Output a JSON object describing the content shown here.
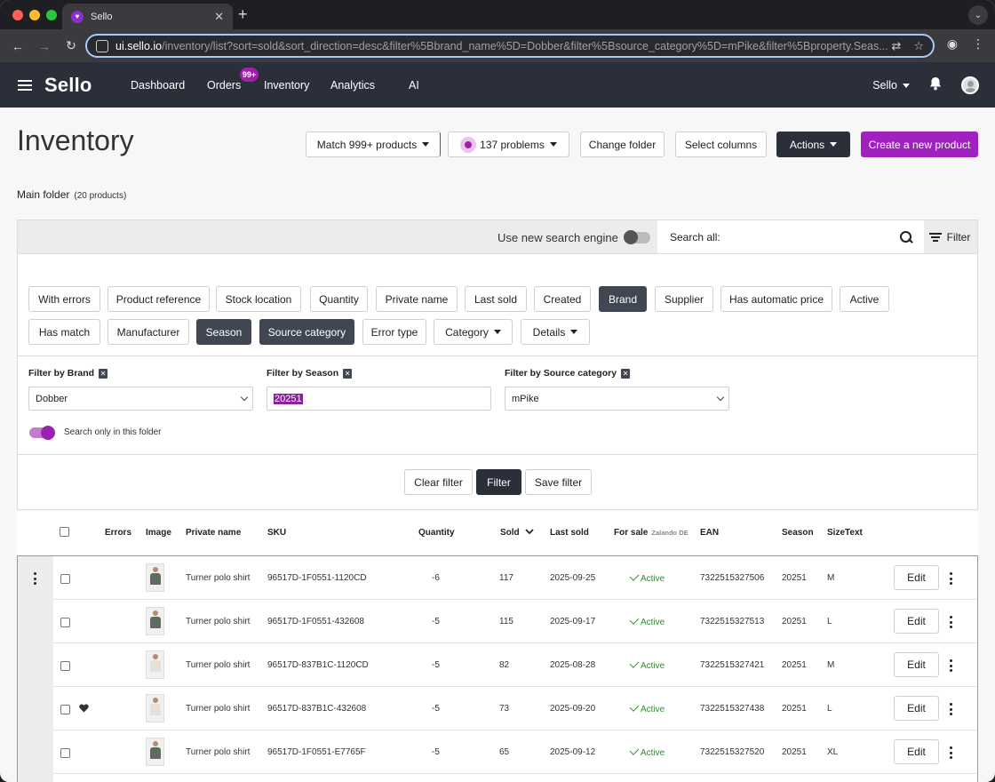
{
  "browser": {
    "tab_title": "Sello",
    "url_host": "ui.sello.io",
    "url_path": "/inventory/list?sort=sold&sort_direction=desc&filter%5Bbrand_name%5D=Dobber&filter%5Bsource_category%5D=mPike&filter%5Bproperty.Seas..."
  },
  "app": {
    "logo": "Sello",
    "nav": [
      "Dashboard",
      "Orders",
      "Inventory",
      "Analytics",
      "AI"
    ],
    "orders_badge": "99+",
    "account": "Sello"
  },
  "page": {
    "title": "Inventory",
    "match_label": "Match 999+ products",
    "problems_label": "137 problems",
    "change_folder": "Change folder",
    "select_columns": "Select columns",
    "actions": "Actions",
    "create": "Create a new product",
    "folder_name": "Main folder",
    "folder_count": "(20 products)"
  },
  "search": {
    "engine_label": "Use new search engine",
    "search_all": "Search all:",
    "filter_label": "Filter"
  },
  "chips": [
    {
      "label": "With errors",
      "active": false
    },
    {
      "label": "Product reference",
      "active": false
    },
    {
      "label": "Stock location",
      "active": false
    },
    {
      "label": "Quantity",
      "active": false
    },
    {
      "label": "Private name",
      "active": false
    },
    {
      "label": "Last sold",
      "active": false
    },
    {
      "label": "Created",
      "active": false
    },
    {
      "label": "Brand",
      "active": true
    },
    {
      "label": "Supplier",
      "active": false
    },
    {
      "label": "Has automatic price",
      "active": false
    },
    {
      "label": "Active",
      "active": false
    },
    {
      "label": "Has match",
      "active": false
    },
    {
      "label": "Manufacturer",
      "active": false
    },
    {
      "label": "Season",
      "active": true
    },
    {
      "label": "Source category",
      "active": true
    },
    {
      "label": "Error type",
      "active": false
    },
    {
      "label": "Category",
      "active": false
    },
    {
      "label": "Details",
      "active": false
    }
  ],
  "filters": {
    "brand_label": "Filter by Brand",
    "brand_value": "Dobber",
    "season_label": "Filter by Season",
    "season_value": "20251",
    "source_label": "Filter by Source category",
    "source_value": "mPike",
    "folder_only_label": "Search only in this folder",
    "clear": "Clear filter",
    "apply": "Filter",
    "save": "Save filter"
  },
  "table": {
    "headers": {
      "errors": "Errors",
      "image": "Image",
      "private_name": "Private name",
      "sku": "SKU",
      "quantity": "Quantity",
      "sold": "Sold",
      "last_sold": "Last sold",
      "for_sale": "For sale",
      "for_sale_sub": "Zalando DE",
      "ean": "EAN",
      "season": "Season",
      "sizetext": "SizeText"
    },
    "edit_label": "Edit",
    "rows": [
      {
        "name": "Turner polo shirt",
        "sku": "96517D-1F0551-1120CD",
        "quantity": "-6",
        "sold": "117",
        "last_sold": "2025-09-25",
        "status": "Active",
        "ean": "7322515327506",
        "season": "20251",
        "size": "M",
        "color": "#5d6b63",
        "heart": false
      },
      {
        "name": "Turner polo shirt",
        "sku": "96517D-1F0551-432608",
        "quantity": "-5",
        "sold": "115",
        "last_sold": "2025-09-17",
        "status": "Active",
        "ean": "7322515327513",
        "season": "20251",
        "size": "L",
        "color": "#5d6b63",
        "heart": false
      },
      {
        "name": "Turner polo shirt",
        "sku": "96517D-837B1C-1120CD",
        "quantity": "-5",
        "sold": "82",
        "last_sold": "2025-08-28",
        "status": "Active",
        "ean": "7322515327421",
        "season": "20251",
        "size": "M",
        "color": "#e6e1d6",
        "heart": false
      },
      {
        "name": "Turner polo shirt",
        "sku": "96517D-837B1C-432608",
        "quantity": "-5",
        "sold": "73",
        "last_sold": "2025-09-20",
        "status": "Active",
        "ean": "7322515327438",
        "season": "20251",
        "size": "L",
        "color": "#e6e1d6",
        "heart": true
      },
      {
        "name": "Turner polo shirt",
        "sku": "96517D-1F0551-E7765F",
        "quantity": "-5",
        "sold": "65",
        "last_sold": "2025-09-12",
        "status": "Active",
        "ean": "7322515327520",
        "season": "20251",
        "size": "XL",
        "color": "#5d6b63",
        "heart": false
      }
    ]
  }
}
